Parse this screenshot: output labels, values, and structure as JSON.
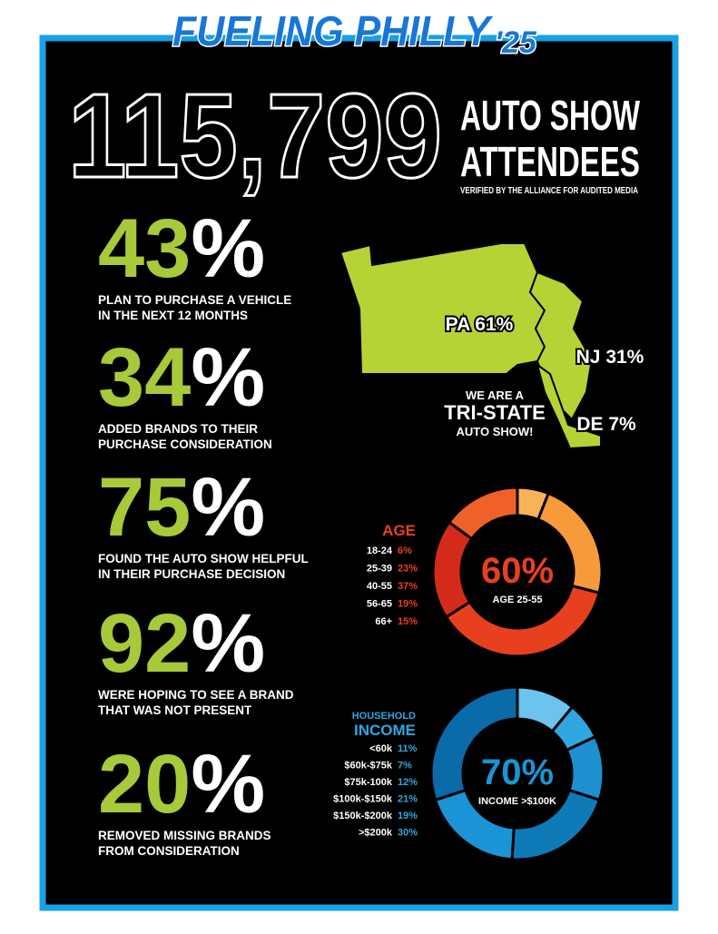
{
  "header": {
    "logo": "FUELING PHILLY",
    "logo_year": "'25",
    "attendees": "115,799",
    "attendees_line1": "AUTO SHOW",
    "attendees_line2": "ATTENDEES",
    "verified": "VERIFIED BY THE ALLIANCE FOR AUDITED MEDIA"
  },
  "stats": [
    {
      "number": "43",
      "unit": "%",
      "lines": [
        "PLAN TO PURCHASE A VEHICLE",
        "IN THE NEXT 12 MONTHS"
      ]
    },
    {
      "number": "34",
      "unit": "%",
      "lines": [
        "ADDED BRANDS TO THEIR",
        "PURCHASE CONSIDERATION"
      ]
    },
    {
      "number": "75",
      "unit": "%",
      "lines": [
        "FOUND THE AUTO SHOW HELPFUL",
        "IN THEIR PURCHASE DECISION"
      ]
    },
    {
      "number": "92",
      "unit": "%",
      "lines": [
        "WERE HOPING TO SEE A BRAND",
        "THAT WAS NOT PRESENT"
      ]
    },
    {
      "number": "20",
      "unit": "%",
      "lines": [
        "REMOVED MISSING BRANDS",
        "FROM CONSIDERATION"
      ]
    }
  ],
  "map": {
    "pa": "PA 61%",
    "nj": "NJ 31%",
    "de": "DE 7%",
    "tagline": [
      "WE ARE A",
      "TRI-STATE",
      "AUTO SHOW!"
    ]
  },
  "chart_data": [
    {
      "type": "donut",
      "title": "AGE",
      "categories": [
        "18-24",
        "25-39",
        "40-55",
        "56-65",
        "66+"
      ],
      "values": [
        6,
        23,
        37,
        19,
        15
      ],
      "value_labels": [
        "6%",
        "23%",
        "37%",
        "19%",
        "15%"
      ],
      "colors": [
        "#f7b25a",
        "#f79a3a",
        "#e8401f",
        "#d42a1a",
        "#f0612a"
      ],
      "center_value": "60%",
      "center_caption": "AGE 25-55"
    },
    {
      "type": "donut",
      "subtitle": "HOUSEHOLD",
      "title": "INCOME",
      "categories": [
        "<60k",
        "$60k-$75k",
        "$75k-100k",
        "$100k-$150k",
        "$150k-$200k",
        ">$200k"
      ],
      "values": [
        11,
        7,
        12,
        21,
        19,
        30
      ],
      "value_labels": [
        "11%",
        "7%",
        "12%",
        "21%",
        "19%",
        "30%"
      ],
      "colors": [
        "#6cc3ef",
        "#2fa6e0",
        "#1e8fcf",
        "#0e7ab8",
        "#1a94d4",
        "#0b6aa8"
      ],
      "center_value": "70%",
      "center_caption": "INCOME >$100K"
    }
  ]
}
